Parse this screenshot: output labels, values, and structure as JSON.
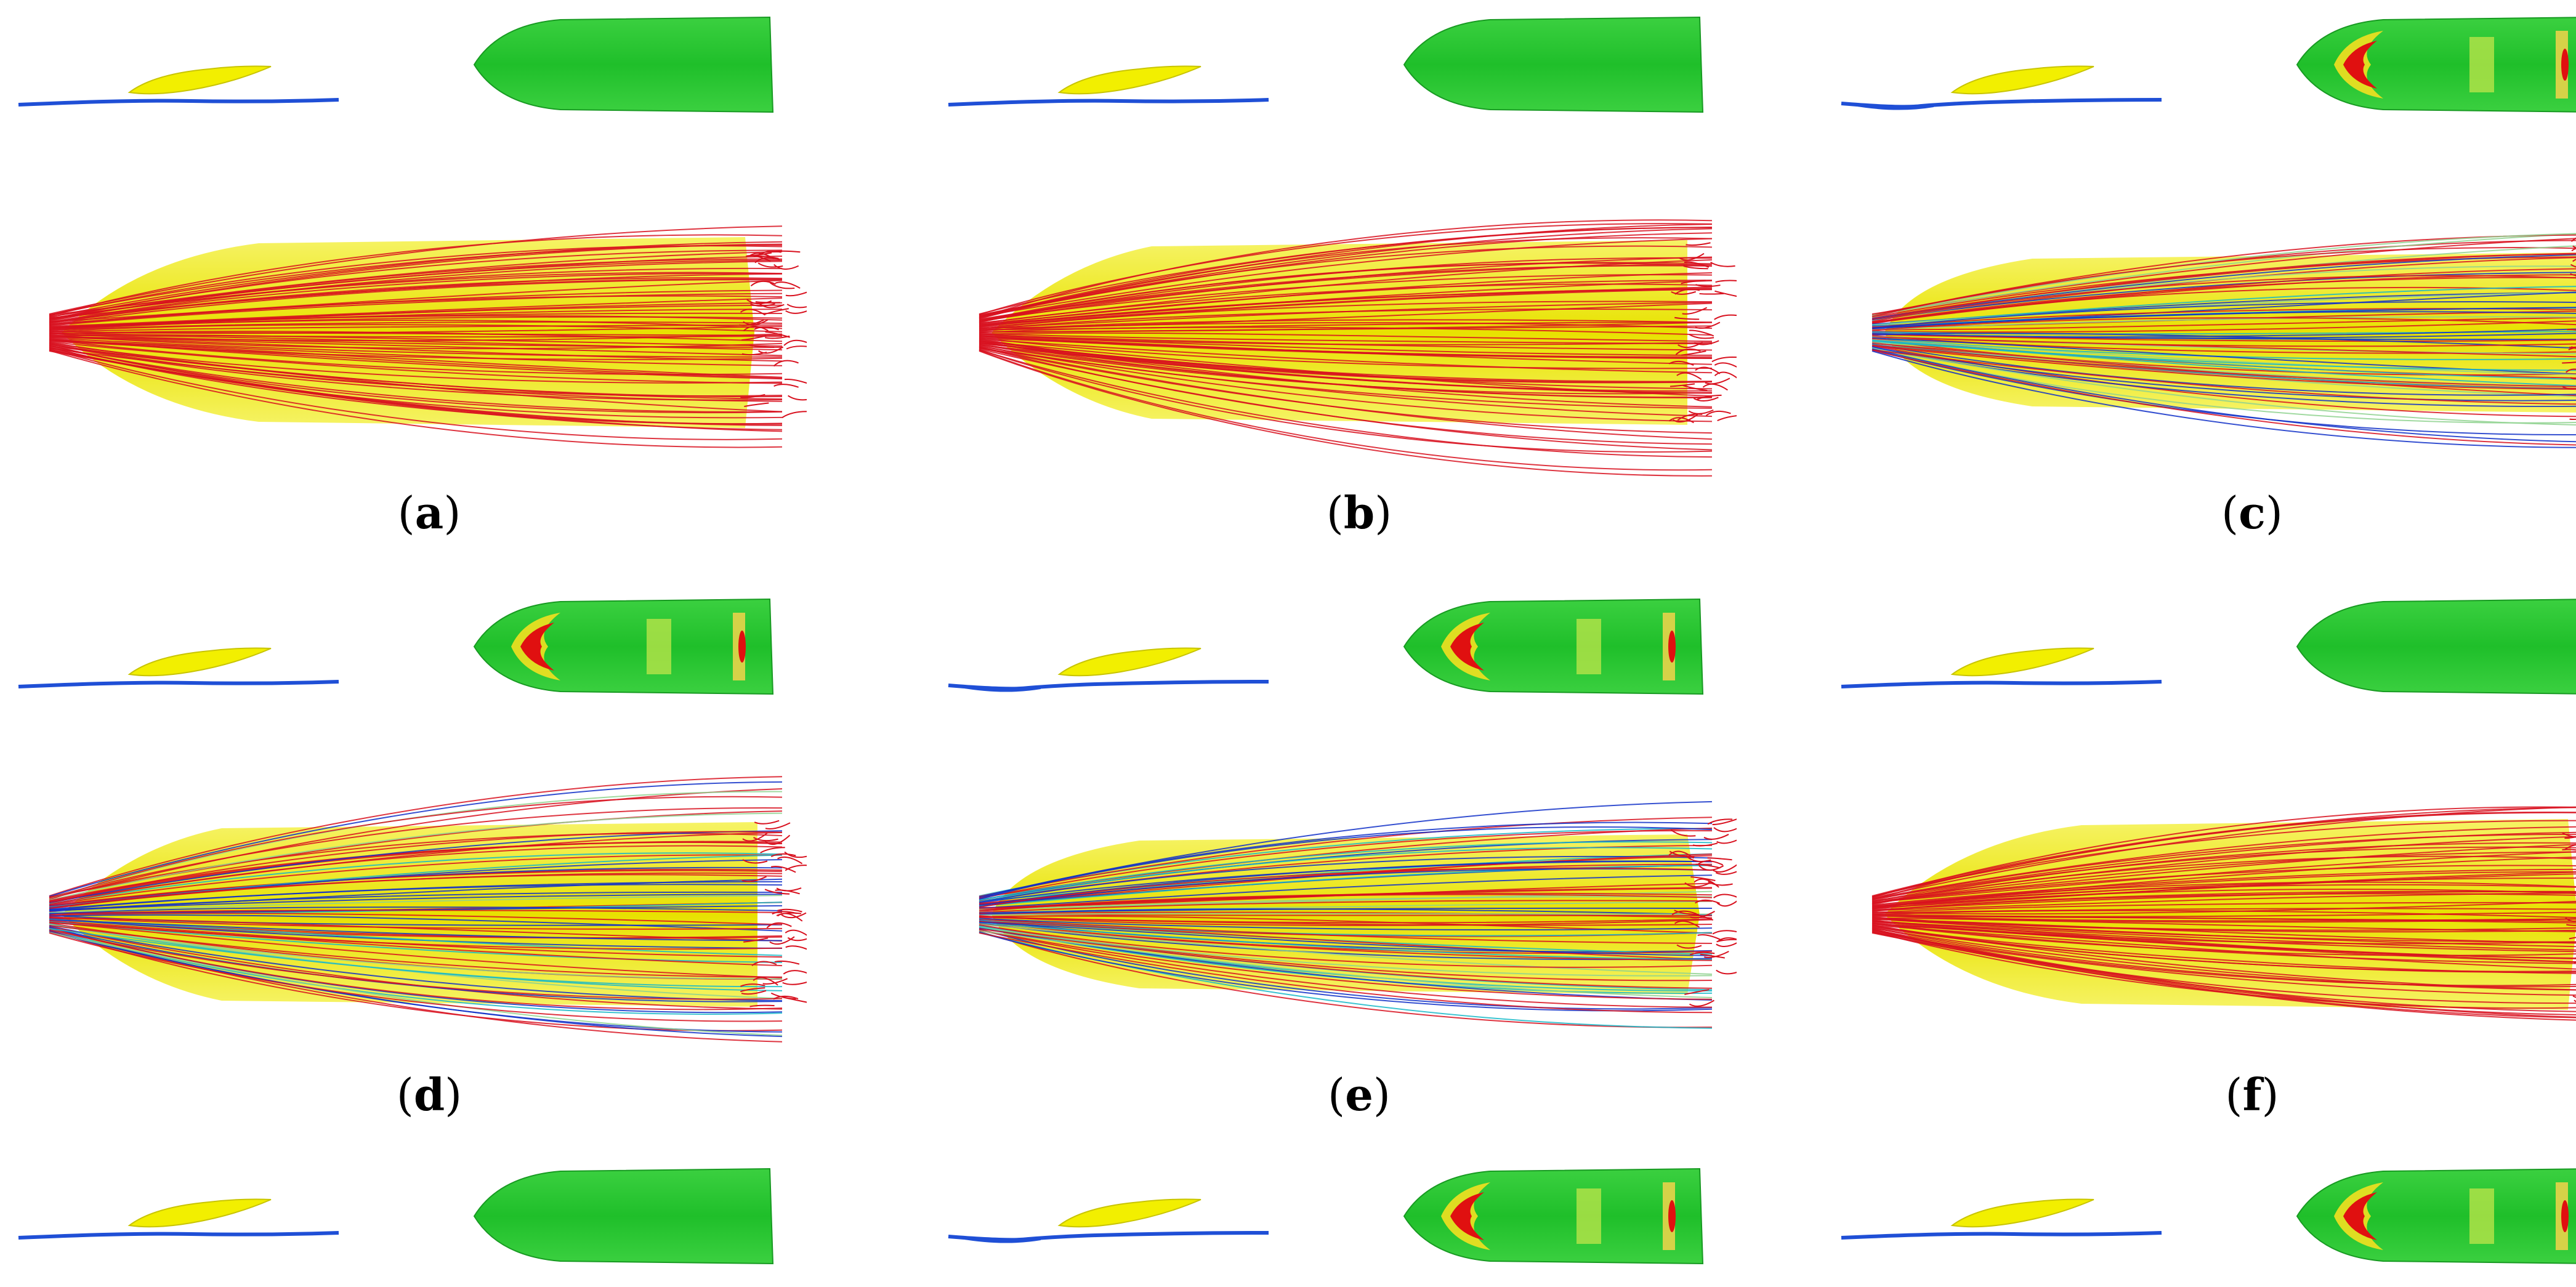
{
  "figure": {
    "panels": [
      {
        "id": "a",
        "label": "a",
        "has_pressure_spots": false,
        "streamlines": "red",
        "lead_style": "bulb",
        "wave_dip": false
      },
      {
        "id": "b",
        "label": "b",
        "has_pressure_spots": false,
        "streamlines": "red",
        "lead_style": "pointed",
        "wave_dip": false
      },
      {
        "id": "c",
        "label": "c",
        "has_pressure_spots": true,
        "streamlines": "mixed",
        "lead_style": "box",
        "wave_dip": true
      },
      {
        "id": "d",
        "label": "d",
        "has_pressure_spots": true,
        "streamlines": "mixed",
        "lead_style": "pointed",
        "wave_dip": false
      },
      {
        "id": "e",
        "label": "e",
        "has_pressure_spots": true,
        "streamlines": "mixed",
        "lead_style": "box",
        "wave_dip": true
      },
      {
        "id": "f",
        "label": "f",
        "has_pressure_spots": false,
        "streamlines": "red",
        "lead_style": "bulb",
        "wave_dip": false
      }
    ],
    "bottom_row": [
      {
        "id": "g",
        "has_pressure_spots": false,
        "wave_dip": false
      },
      {
        "id": "h",
        "has_pressure_spots": true,
        "wave_dip": true
      },
      {
        "id": "i",
        "has_pressure_spots": true,
        "wave_dip": false
      }
    ],
    "colors": {
      "hull_yellow": "#f2ef00",
      "hull_green": "#22cc33",
      "wave_blue": "#1f4fd6",
      "streamline_red": "#d8101e",
      "streamline_blue": "#1030c8",
      "pressure_red": "#e01010"
    }
  }
}
